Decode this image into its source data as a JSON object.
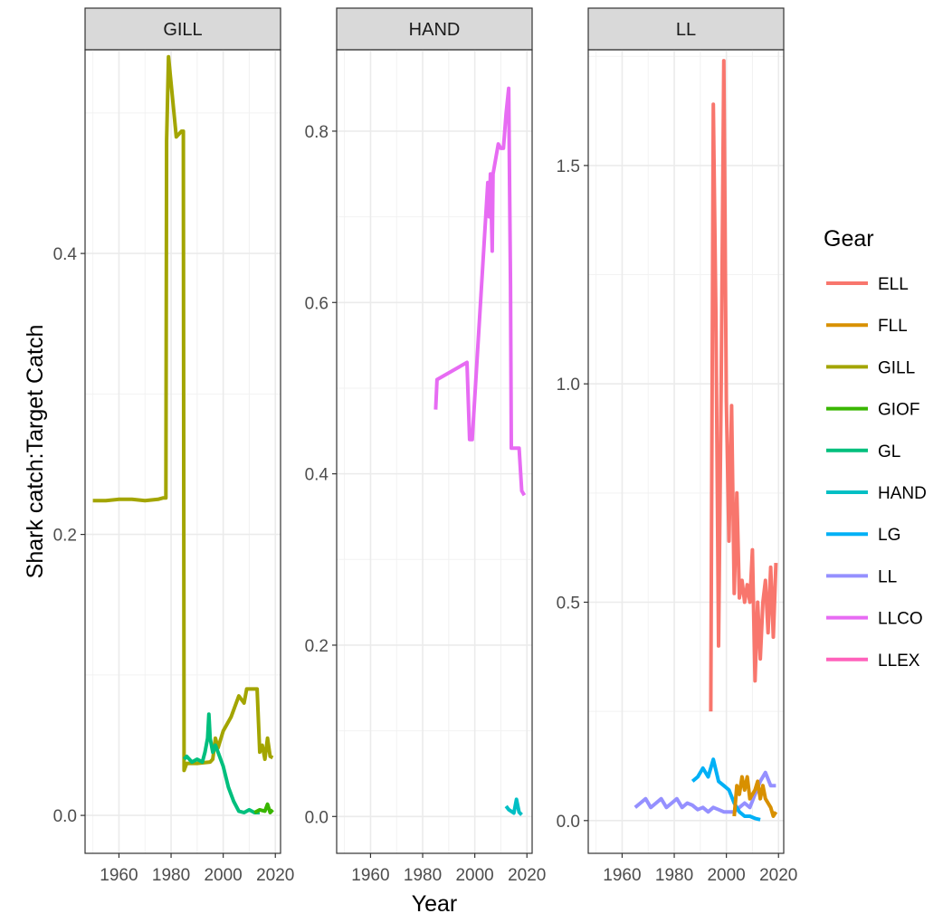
{
  "chart_data": {
    "type": "line",
    "facet_variable": "gear group",
    "xlabel": "Year",
    "ylabel": "Shark catch:Target Catch",
    "legend": {
      "title": "Gear",
      "position": "right",
      "entries": [
        "ELL",
        "FLL",
        "GILL",
        "GIOF",
        "GL",
        "HAND",
        "LG",
        "LL",
        "LLCO",
        "LLEX"
      ]
    },
    "colors": {
      "ELL": "#F8766D",
      "FLL": "#D89000",
      "GILL": "#A3A500",
      "GIOF": "#39B600",
      "GL": "#00BF7D",
      "HAND": "#00BFC4",
      "LG": "#00B0F6",
      "LL": "#9590FF",
      "LLCO": "#E76BF3",
      "LLEX": "#FF62BC"
    },
    "grid": true,
    "panels": [
      {
        "strip": "GILL",
        "xlim": [
          1947,
          2022
        ],
        "ylim": [
          -0.027,
          0.545
        ],
        "xticks": [
          1960,
          1980,
          2000,
          2020
        ],
        "yticks": [
          0.0,
          0.2,
          0.4
        ],
        "ytick_labels": [
          "0.0",
          "0.2",
          "0.4"
        ],
        "series": [
          {
            "name": "GILL",
            "x": [
              1950,
              1955,
              1960,
              1965,
              1970,
              1975,
              1977,
              1978,
              1978.3,
              1979,
              1982,
              1984,
              1984.7,
              1985,
              1986,
              1990,
              1995,
              1996,
              1997,
              1998,
              2000,
              2003,
              2006,
              2008,
              2009,
              2010,
              2012,
              2013,
              2014,
              2015,
              2016,
              2017,
              2018,
              2019
            ],
            "y": [
              0.224,
              0.224,
              0.225,
              0.225,
              0.224,
              0.225,
              0.226,
              0.226,
              0.48,
              0.54,
              0.483,
              0.487,
              0.487,
              0.032,
              0.037,
              0.037,
              0.038,
              0.04,
              0.055,
              0.048,
              0.06,
              0.07,
              0.085,
              0.08,
              0.09,
              0.09,
              0.09,
              0.09,
              0.045,
              0.05,
              0.04,
              0.055,
              0.042,
              0.041
            ]
          },
          {
            "name": "GL",
            "x": [
              1985,
              1986,
              1988,
              1990,
              1992,
              1993,
              1994,
              1994.5,
              1995,
              1996,
              1997,
              1998,
              2000,
              2002,
              2004,
              2006,
              2008,
              2010,
              2012,
              2014
            ],
            "y": [
              0.04,
              0.042,
              0.038,
              0.04,
              0.038,
              0.045,
              0.055,
              0.072,
              0.055,
              0.045,
              0.05,
              0.045,
              0.035,
              0.02,
              0.01,
              0.003,
              0.002,
              0.004,
              0.002,
              0.002
            ]
          },
          {
            "name": "GIOF",
            "x": [
              2012,
              2014,
              2016,
              2017,
              2018,
              2019
            ],
            "y": [
              0.002,
              0.004,
              0.003,
              0.008,
              0.002,
              0.004
            ]
          }
        ]
      },
      {
        "strip": "HAND",
        "xlim": [
          1947,
          2022
        ],
        "ylim": [
          -0.043,
          0.895
        ],
        "xticks": [
          1960,
          1980,
          2000,
          2020
        ],
        "yticks": [
          0.0,
          0.2,
          0.4,
          0.6,
          0.8
        ],
        "ytick_labels": [
          "0.0",
          "0.2",
          "0.4",
          "0.6",
          "0.8"
        ],
        "series": [
          {
            "name": "LLCO",
            "x": [
              1985,
              1985.5,
              1997,
              1998,
              1999,
              2005,
              2005.5,
              2006,
              2006.7,
              2007,
              2009,
              2010,
              2011,
              2012,
              2013,
              2013.7,
              2014,
              2015,
              2016,
              2017,
              2018,
              2019
            ],
            "y": [
              0.475,
              0.51,
              0.53,
              0.44,
              0.44,
              0.74,
              0.7,
              0.75,
              0.66,
              0.75,
              0.785,
              0.78,
              0.78,
              0.82,
              0.85,
              0.62,
              0.43,
              0.43,
              0.43,
              0.43,
              0.38,
              0.375
            ]
          },
          {
            "name": "HAND",
            "x": [
              2012,
              2013,
              2015,
              2016,
              2017,
              2018
            ],
            "y": [
              0.012,
              0.008,
              0.004,
              0.02,
              0.005,
              0.002
            ]
          }
        ]
      },
      {
        "strip": "LL",
        "xlim": [
          1947,
          2022
        ],
        "ylim": [
          -0.075,
          1.765
        ],
        "xticks": [
          1960,
          1980,
          2000,
          2020
        ],
        "yticks": [
          0.0,
          0.5,
          1.0,
          1.5
        ],
        "ytick_labels": [
          "0.0",
          "0.5",
          "1.0",
          "1.5"
        ],
        "series": [
          {
            "name": "ELL",
            "x": [
              1994,
              1995,
              1996,
              1997,
              1998,
              1999,
              2000,
              2001,
              2002,
              2003,
              2004,
              2005,
              2006,
              2007,
              2008,
              2009,
              2010,
              2011,
              2012,
              2013,
              2014,
              2015,
              2016,
              2017,
              2018,
              2019
            ],
            "y": [
              0.25,
              1.64,
              1.15,
              0.4,
              1.0,
              1.74,
              0.96,
              0.64,
              0.95,
              0.52,
              0.75,
              0.51,
              0.55,
              0.5,
              0.54,
              0.5,
              0.62,
              0.32,
              0.5,
              0.37,
              0.5,
              0.55,
              0.43,
              0.58,
              0.42,
              0.59
            ]
          },
          {
            "name": "LL",
            "x": [
              1965,
              1967,
              1969,
              1971,
              1973,
              1975,
              1977,
              1979,
              1981,
              1983,
              1985,
              1987,
              1989,
              1991,
              1993,
              1995,
              1997,
              1999,
              2001,
              2003,
              2005,
              2007,
              2009,
              2011,
              2013,
              2015,
              2017,
              2019
            ],
            "y": [
              0.03,
              0.04,
              0.05,
              0.03,
              0.04,
              0.05,
              0.03,
              0.04,
              0.05,
              0.03,
              0.04,
              0.035,
              0.025,
              0.03,
              0.02,
              0.03,
              0.025,
              0.02,
              0.02,
              0.02,
              0.03,
              0.04,
              0.03,
              0.06,
              0.09,
              0.11,
              0.08,
              0.08
            ]
          },
          {
            "name": "LG",
            "x": [
              1987,
              1989,
              1991,
              1993,
              1995,
              1997,
              1999,
              2001,
              2003,
              2005,
              2007,
              2009,
              2011,
              2013
            ],
            "y": [
              0.09,
              0.1,
              0.12,
              0.1,
              0.14,
              0.09,
              0.08,
              0.07,
              0.04,
              0.02,
              0.01,
              0.01,
              0.005,
              0.002
            ]
          },
          {
            "name": "FLL",
            "x": [
              2003,
              2004,
              2005,
              2006,
              2007,
              2008,
              2009,
              2010,
              2011,
              2012,
              2013,
              2014,
              2015,
              2016,
              2017,
              2018,
              2019
            ],
            "y": [
              0.01,
              0.08,
              0.06,
              0.1,
              0.07,
              0.1,
              0.05,
              0.06,
              0.07,
              0.09,
              0.05,
              0.08,
              0.05,
              0.04,
              0.03,
              0.01,
              0.02
            ]
          }
        ]
      }
    ]
  }
}
